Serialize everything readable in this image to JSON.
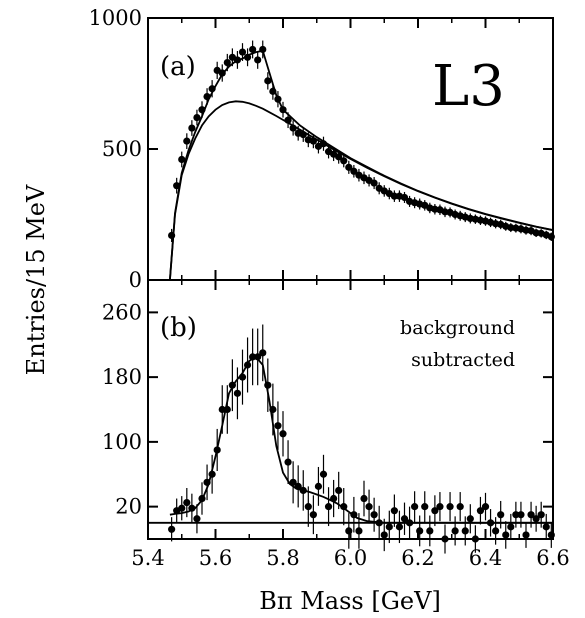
{
  "chart_data": [
    {
      "type": "scatter",
      "panel_label": "(a)",
      "experiment_label": "L3",
      "xlim": [
        5.4,
        6.6
      ],
      "ylim": [
        0,
        1000
      ],
      "yticks": [
        "0",
        "500",
        "1000"
      ],
      "xticks": [
        "5.4",
        "5.6",
        "5.8",
        "6.0",
        "6.2",
        "6.4",
        "6.6"
      ],
      "series": [
        {
          "role": "data",
          "x": [
            5.47,
            5.485,
            5.5,
            5.515,
            5.53,
            5.545,
            5.56,
            5.575,
            5.59,
            5.605,
            5.62,
            5.635,
            5.65,
            5.665,
            5.68,
            5.695,
            5.71,
            5.725,
            5.74,
            5.755,
            5.77,
            5.785,
            5.8,
            5.815,
            5.83,
            5.845,
            5.86,
            5.875,
            5.89,
            5.905,
            5.92,
            5.935,
            5.95,
            5.965,
            5.98,
            5.995,
            6.01,
            6.025,
            6.04,
            6.055,
            6.07,
            6.085,
            6.1,
            6.115,
            6.13,
            6.145,
            6.16,
            6.175,
            6.19,
            6.205,
            6.22,
            6.235,
            6.25,
            6.265,
            6.28,
            6.295,
            6.31,
            6.325,
            6.34,
            6.355,
            6.37,
            6.385,
            6.4,
            6.415,
            6.43,
            6.445,
            6.46,
            6.475,
            6.49,
            6.505,
            6.52,
            6.535,
            6.55,
            6.565,
            6.58,
            6.595
          ],
          "y": [
            170,
            360,
            460,
            530,
            580,
            620,
            650,
            700,
            730,
            800,
            790,
            830,
            850,
            840,
            870,
            850,
            880,
            840,
            880,
            760,
            720,
            690,
            650,
            610,
            580,
            560,
            555,
            535,
            530,
            510,
            520,
            490,
            480,
            470,
            455,
            430,
            415,
            400,
            390,
            380,
            370,
            350,
            340,
            330,
            320,
            320,
            315,
            300,
            295,
            290,
            285,
            275,
            270,
            268,
            260,
            258,
            250,
            245,
            240,
            235,
            232,
            228,
            225,
            220,
            215,
            212,
            205,
            200,
            198,
            195,
            190,
            188,
            180,
            178,
            172,
            165
          ],
          "yerr": [
            25,
            30,
            30,
            30,
            30,
            30,
            32,
            32,
            33,
            33,
            33,
            33,
            34,
            34,
            34,
            34,
            34,
            34,
            34,
            33,
            32,
            31,
            30,
            30,
            29,
            28,
            28,
            28,
            27,
            27,
            27,
            26,
            26,
            26,
            25,
            25,
            24,
            24,
            24,
            23,
            23,
            23,
            22,
            22,
            22,
            22,
            21,
            21,
            21,
            21,
            20,
            20,
            20,
            20,
            20,
            19,
            19,
            19,
            19,
            19,
            18,
            18,
            18,
            18,
            18,
            18,
            17,
            17,
            17,
            17,
            17,
            17,
            16,
            16,
            16,
            16
          ]
        },
        {
          "role": "background fit",
          "x": [
            5.465,
            5.48,
            5.5,
            5.52,
            5.54,
            5.56,
            5.58,
            5.6,
            5.62,
            5.64,
            5.66,
            5.68,
            5.7,
            5.72,
            5.74,
            5.76,
            5.78,
            5.8,
            5.85,
            5.9,
            5.95,
            6.0,
            6.05,
            6.1,
            6.15,
            6.2,
            6.25,
            6.3,
            6.35,
            6.4,
            6.45,
            6.5,
            6.55,
            6.6
          ],
          "y": [
            0,
            250,
            400,
            480,
            540,
            590,
            625,
            650,
            668,
            678,
            682,
            680,
            674,
            665,
            654,
            640,
            626,
            611,
            574,
            536,
            498,
            462,
            428,
            396,
            366,
            339,
            314,
            291,
            270,
            251,
            234,
            218,
            203,
            190
          ]
        },
        {
          "role": "total fit",
          "x": [
            5.465,
            5.48,
            5.5,
            5.52,
            5.54,
            5.56,
            5.58,
            5.6,
            5.62,
            5.64,
            5.66,
            5.68,
            5.7,
            5.72,
            5.74,
            5.76,
            5.78,
            5.8,
            5.85,
            5.9,
            5.95,
            6.0,
            6.05,
            6.1,
            6.15,
            6.2,
            6.25,
            6.3,
            6.35,
            6.4,
            6.45,
            6.5,
            6.55,
            6.6
          ],
          "y": [
            0,
            255,
            408,
            495,
            565,
            625,
            690,
            740,
            785,
            815,
            835,
            845,
            860,
            870,
            875,
            790,
            705,
            650,
            590,
            545,
            505,
            465,
            431,
            398,
            368,
            340,
            315,
            292,
            271,
            252,
            235,
            219,
            204,
            191
          ]
        }
      ]
    },
    {
      "type": "scatter",
      "panel_label": "(b)",
      "annotation": [
        "background",
        "subtracted"
      ],
      "xlim": [
        5.4,
        6.6
      ],
      "ylim": [
        -20,
        300
      ],
      "yticks": [
        "20",
        "100",
        "180",
        "260"
      ],
      "xticks": [
        "5.4",
        "5.6",
        "5.8",
        "6.0",
        "6.2",
        "6.4",
        "6.6"
      ],
      "xlabel": "Bπ Mass [GeV]",
      "ylabel": "Entries/15 MeV",
      "series": [
        {
          "role": "data",
          "x": [
            5.47,
            5.485,
            5.5,
            5.515,
            5.53,
            5.545,
            5.56,
            5.575,
            5.59,
            5.605,
            5.62,
            5.635,
            5.65,
            5.665,
            5.68,
            5.695,
            5.71,
            5.725,
            5.74,
            5.755,
            5.77,
            5.785,
            5.8,
            5.815,
            5.83,
            5.845,
            5.86,
            5.875,
            5.89,
            5.905,
            5.92,
            5.935,
            5.95,
            5.965,
            5.98,
            5.995,
            6.01,
            6.025,
            6.04,
            6.055,
            6.07,
            6.085,
            6.1,
            6.115,
            6.13,
            6.145,
            6.16,
            6.175,
            6.19,
            6.205,
            6.22,
            6.235,
            6.25,
            6.265,
            6.28,
            6.295,
            6.31,
            6.325,
            6.34,
            6.355,
            6.37,
            6.385,
            6.4,
            6.415,
            6.43,
            6.445,
            6.46,
            6.475,
            6.49,
            6.505,
            6.52,
            6.535,
            6.55,
            6.565,
            6.58,
            6.595
          ],
          "y": [
            -8,
            15,
            18,
            25,
            18,
            5,
            30,
            50,
            60,
            90,
            140,
            140,
            170,
            160,
            180,
            195,
            205,
            205,
            210,
            170,
            140,
            120,
            110,
            75,
            50,
            45,
            40,
            20,
            10,
            45,
            60,
            20,
            30,
            40,
            20,
            -10,
            10,
            -10,
            30,
            20,
            10,
            0,
            -15,
            -5,
            15,
            -5,
            5,
            0,
            20,
            -10,
            20,
            -10,
            15,
            20,
            -20,
            20,
            -10,
            20,
            -10,
            5,
            -20,
            15,
            20,
            0,
            -10,
            10,
            -15,
            -5,
            10,
            10,
            -15,
            10,
            5,
            10,
            -5,
            -15
          ],
          "yerr": [
            15,
            15,
            15,
            18,
            18,
            18,
            20,
            22,
            24,
            26,
            30,
            30,
            32,
            32,
            34,
            34,
            35,
            35,
            35,
            33,
            32,
            30,
            28,
            27,
            26,
            26,
            25,
            25,
            24,
            24,
            24,
            24,
            23,
            23,
            23,
            22,
            22,
            22,
            22,
            21,
            21,
            21,
            20,
            20,
            20,
            20,
            20,
            20,
            19,
            19,
            19,
            19,
            19,
            18,
            18,
            18,
            18,
            18,
            18,
            18,
            17,
            17,
            17,
            17,
            17,
            17,
            17,
            16,
            16,
            16,
            16,
            16,
            16,
            16,
            16,
            16
          ]
        },
        {
          "role": "total fit",
          "x": [
            5.465,
            5.48,
            5.5,
            5.52,
            5.54,
            5.56,
            5.58,
            5.6,
            5.62,
            5.64,
            5.66,
            5.68,
            5.7,
            5.72,
            5.74,
            5.76,
            5.78,
            5.8,
            5.82,
            5.84,
            5.86,
            5.88,
            5.9,
            5.92,
            5.94,
            5.96,
            5.98,
            6.0,
            6.02,
            6.05,
            6.1,
            6.2,
            6.3,
            6.4,
            6.5,
            6.6
          ],
          "y": [
            10,
            11,
            12,
            14,
            18,
            28,
            48,
            82,
            120,
            160,
            175,
            185,
            200,
            205,
            195,
            150,
            95,
            62,
            48,
            42,
            40,
            38,
            35,
            32,
            28,
            24,
            18,
            12,
            6,
            2,
            0,
            0,
            0,
            0,
            0,
            0
          ]
        },
        {
          "role": "baseline",
          "x": [
            5.4,
            6.6
          ],
          "y": [
            0,
            0
          ]
        }
      ]
    }
  ]
}
